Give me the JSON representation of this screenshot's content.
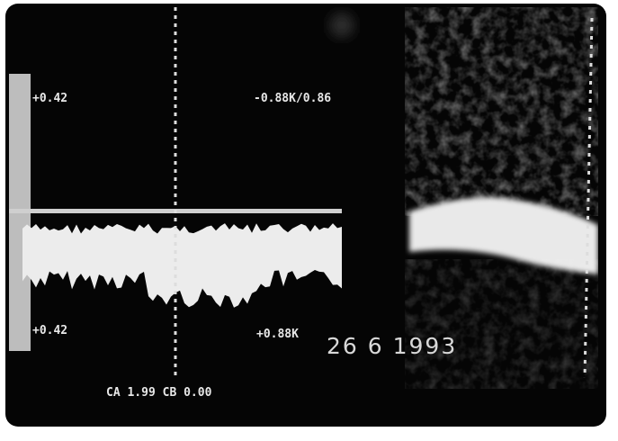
{
  "overlay": {
    "top_left_scale": "+0.42",
    "top_velocity": "-0.88K/0.86",
    "bottom_left_scale": "+0.42",
    "bottom_velocity": "+0.88K",
    "date": "26  6 1993",
    "cursor_readout": "CA 1.99 CB 0.00"
  }
}
